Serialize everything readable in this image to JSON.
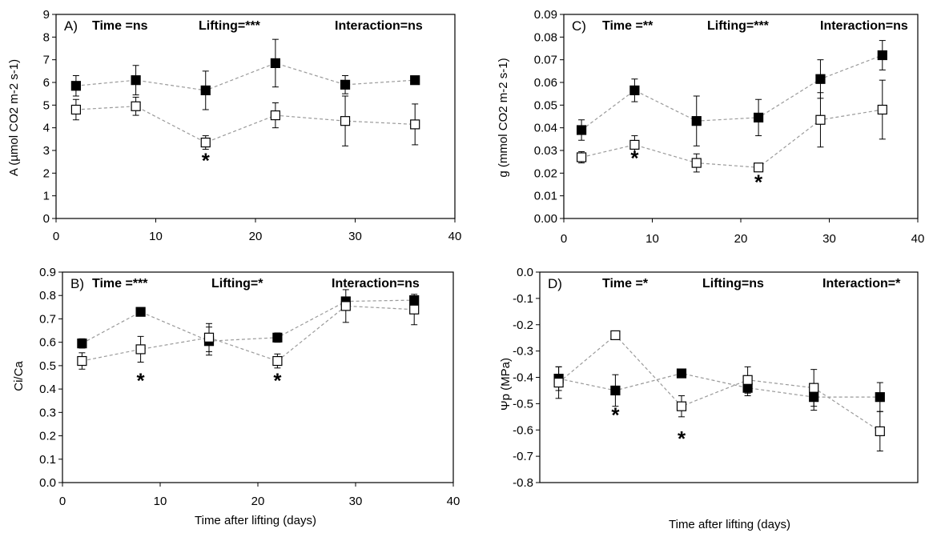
{
  "figure": {
    "x_axis_label": "Time after lifting (days)"
  },
  "chart_data": [
    {
      "type": "line",
      "panel_label": "A)",
      "stats": {
        "time": "Time =ns",
        "lifting": "Lifting=***",
        "interaction": "Interaction=ns"
      },
      "ylabel": "A (µmol CO2 m-2 s-1)",
      "xlabel": "",
      "xlim": [
        0,
        40
      ],
      "xticks": [
        0,
        10,
        20,
        30,
        40
      ],
      "ylim": [
        0,
        9
      ],
      "yticks": [
        "0",
        "1",
        "2",
        "3",
        "4",
        "5",
        "6",
        "7",
        "8",
        "9"
      ],
      "grid": false,
      "series": [
        {
          "marker": "filled-square",
          "x": [
            2,
            8,
            15,
            22,
            29,
            36
          ],
          "y": [
            5.85,
            6.1,
            5.65,
            6.85,
            5.9,
            6.1
          ],
          "err": [
            0.45,
            0.65,
            0.85,
            1.05,
            0.4,
            0.0
          ]
        },
        {
          "marker": "open-square",
          "x": [
            2,
            8,
            15,
            22,
            29,
            36
          ],
          "y": [
            4.8,
            4.95,
            3.35,
            4.55,
            4.3,
            4.15
          ],
          "err": [
            0.45,
            0.4,
            0.3,
            0.55,
            1.1,
            0.9
          ]
        }
      ],
      "significance": [
        {
          "x": 15,
          "y": 2.6,
          "text": "*"
        }
      ]
    },
    {
      "type": "line",
      "panel_label": "C)",
      "stats": {
        "time": "Time =**",
        "lifting": "Lifting=***",
        "interaction": "Interaction=ns"
      },
      "ylabel": "g (mmol CO2 m-2 s-1)",
      "xlabel": "",
      "xlim": [
        0,
        40
      ],
      "xticks": [
        0,
        10,
        20,
        30,
        40
      ],
      "ylim": [
        0,
        0.09
      ],
      "yticks": [
        "0.00",
        "0.01",
        "0.02",
        "0.03",
        "0.04",
        "0.05",
        "0.06",
        "0.07",
        "0.08",
        "0.09"
      ],
      "grid": false,
      "series": [
        {
          "marker": "filled-square",
          "x": [
            2,
            8,
            15,
            22,
            29,
            36
          ],
          "y": [
            0.039,
            0.0565,
            0.043,
            0.0445,
            0.0615,
            0.072
          ],
          "err": [
            0.0045,
            0.005,
            0.011,
            0.008,
            0.0085,
            0.0065
          ]
        },
        {
          "marker": "open-square",
          "x": [
            2,
            8,
            15,
            22,
            29,
            36
          ],
          "y": [
            0.027,
            0.0325,
            0.0245,
            0.0225,
            0.0435,
            0.048
          ],
          "err": [
            0.0025,
            0.004,
            0.004,
            0.001,
            0.012,
            0.013
          ]
        }
      ],
      "significance": [
        {
          "x": 8,
          "y": 0.027,
          "text": "*"
        },
        {
          "x": 22,
          "y": 0.0165,
          "text": "*"
        }
      ]
    },
    {
      "type": "line",
      "panel_label": "B)",
      "stats": {
        "time": "Time =***",
        "lifting": "Lifting=*",
        "interaction": "Interaction=ns"
      },
      "ylabel": "Ci/Ca",
      "xlabel": "Time after lifting (days)",
      "xlim": [
        0,
        40
      ],
      "xticks": [
        0,
        10,
        20,
        30,
        40
      ],
      "ylim": [
        0,
        0.9
      ],
      "yticks": [
        "0.0",
        "0.1",
        "0.2",
        "0.3",
        "0.4",
        "0.5",
        "0.6",
        "0.7",
        "0.8",
        "0.9"
      ],
      "grid": false,
      "series": [
        {
          "marker": "filled-square",
          "x": [
            2,
            8,
            15,
            22,
            29,
            36
          ],
          "y": [
            0.595,
            0.73,
            0.605,
            0.62,
            0.775,
            0.78
          ],
          "err": [
            0.02,
            0.01,
            0.06,
            0.02,
            0.01,
            0.01
          ]
        },
        {
          "marker": "open-square",
          "x": [
            2,
            8,
            15,
            22,
            29,
            36
          ],
          "y": [
            0.52,
            0.57,
            0.62,
            0.52,
            0.755,
            0.74
          ],
          "err": [
            0.035,
            0.055,
            0.06,
            0.03,
            0.07,
            0.065
          ]
        }
      ],
      "significance": [
        {
          "x": 8,
          "y": 0.44,
          "text": "*"
        },
        {
          "x": 22,
          "y": 0.44,
          "text": "*"
        }
      ]
    },
    {
      "type": "line",
      "panel_label": "D)",
      "stats": {
        "time": "Time =*",
        "lifting": "Lifting=ns",
        "interaction": "Interaction=*"
      },
      "ylabel": "Ψp (MPa)",
      "xlabel": "Time after lifting (days)",
      "xlim": [
        0,
        40
      ],
      "xticks": [],
      "ylim": [
        -0.8,
        0.0
      ],
      "yticks": [
        "-0.8",
        "-0.7",
        "-0.6",
        "-0.5",
        "-0.4",
        "-0.3",
        "-0.2",
        "-0.1",
        "0.0"
      ],
      "grid": false,
      "series": [
        {
          "marker": "filled-square",
          "x": [
            2,
            8,
            15,
            22,
            29,
            36
          ],
          "y": [
            -0.405,
            -0.45,
            -0.385,
            -0.44,
            -0.475,
            -0.475
          ],
          "err": [
            0.045,
            0.06,
            0.01,
            0.03,
            0.05,
            0.055
          ]
        },
        {
          "marker": "open-square",
          "x": [
            2,
            8,
            15,
            22,
            29,
            36
          ],
          "y": [
            -0.42,
            -0.24,
            -0.51,
            -0.41,
            -0.44,
            -0.605
          ],
          "err": [
            0.06,
            0.01,
            0.04,
            0.05,
            0.07,
            0.075
          ]
        }
      ],
      "significance": [
        {
          "x": 8,
          "y": -0.54,
          "text": "*"
        },
        {
          "x": 15,
          "y": -0.63,
          "text": "*"
        }
      ]
    }
  ]
}
